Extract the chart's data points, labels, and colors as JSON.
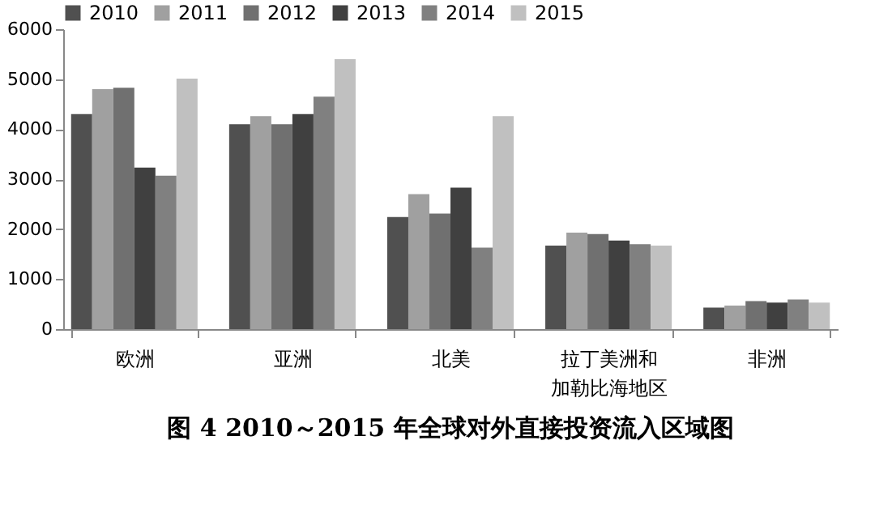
{
  "chart_data": {
    "type": "bar",
    "title": "图 4  2010～2015 年全球对外直接投资流入区域图",
    "categories": [
      "欧洲",
      "亚洲",
      "北美",
      "拉丁美洲和加勒比海地区",
      "非洲"
    ],
    "series": [
      {
        "name": "2010",
        "color": "#505050",
        "values": [
          4300,
          4100,
          2240,
          1670,
          430
        ]
      },
      {
        "name": "2011",
        "color": "#a0a0a0",
        "values": [
          4800,
          4260,
          2700,
          1930,
          470
        ]
      },
      {
        "name": "2012",
        "color": "#707070",
        "values": [
          4830,
          4100,
          2310,
          1900,
          560
        ]
      },
      {
        "name": "2013",
        "color": "#404040",
        "values": [
          3230,
          4300,
          2830,
          1770,
          530
        ]
      },
      {
        "name": "2014",
        "color": "#808080",
        "values": [
          3070,
          4650,
          1630,
          1700,
          590
        ]
      },
      {
        "name": "2015",
        "color": "#c0c0c0",
        "values": [
          5010,
          5400,
          4260,
          1670,
          530
        ]
      }
    ],
    "ylim": [
      0,
      6000
    ],
    "yticks": [
      0,
      1000,
      2000,
      3000,
      4000,
      5000,
      6000
    ],
    "grid": false,
    "legend": "top"
  }
}
